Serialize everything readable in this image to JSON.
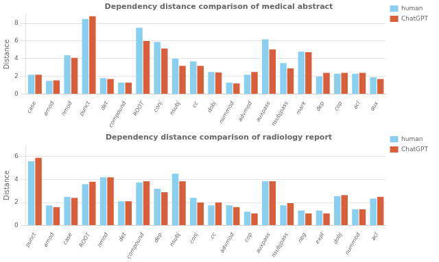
{
  "chart_data": [
    {
      "type": "bar",
      "title": "Dependency distance comparison of medical abstract",
      "ylabel": "Distance",
      "categories": [
        "case",
        "amod",
        "nmod",
        "punct",
        "det",
        "compound",
        "ROOT",
        "conj",
        "nsubj",
        "cc",
        "dobj",
        "nummod",
        "advmod",
        "auxpass",
        "nsubjpass",
        "mark",
        "dep",
        "cop",
        "acl",
        "aux"
      ],
      "series": [
        {
          "name": "human",
          "color": "#89CFF0",
          "values": [
            2.2,
            1.5,
            4.4,
            8.5,
            1.8,
            1.3,
            7.5,
            5.9,
            4.0,
            3.7,
            2.5,
            1.3,
            2.2,
            6.2,
            3.5,
            4.8,
            2.0,
            2.3,
            2.3,
            1.9
          ]
        },
        {
          "name": "ChatGPT",
          "color": "#D95F3B",
          "values": [
            2.2,
            1.55,
            4.1,
            8.8,
            1.7,
            1.3,
            6.0,
            5.15,
            3.2,
            3.2,
            2.45,
            1.2,
            2.5,
            5.05,
            2.9,
            4.75,
            2.4,
            2.4,
            2.4,
            1.7
          ]
        }
      ],
      "ylim": [
        0,
        9
      ],
      "yticks": [
        0,
        2,
        4,
        6,
        8
      ],
      "grid": true,
      "legend": "upper right"
    },
    {
      "type": "bar",
      "title": "Dependency distance comparison of radiology report",
      "ylabel": "Distance",
      "categories": [
        "punct",
        "amod",
        "case",
        "ROOT",
        "nmod",
        "det",
        "compound",
        "dep",
        "nsubj",
        "conj",
        "cc",
        "advmod",
        "cop",
        "auxpass",
        "nsubjpass",
        "neg",
        "expl",
        "dobj",
        "nummod",
        "acl"
      ],
      "series": [
        {
          "name": "human",
          "color": "#89CFF0",
          "values": [
            5.6,
            1.75,
            2.5,
            3.6,
            4.2,
            2.1,
            3.75,
            3.2,
            4.5,
            2.4,
            1.75,
            1.75,
            1.2,
            3.85,
            1.75,
            1.3,
            1.3,
            2.55,
            1.4,
            2.35
          ]
        },
        {
          "name": "ChatGPT",
          "color": "#D95F3B",
          "values": [
            5.9,
            1.6,
            2.4,
            3.8,
            4.2,
            2.1,
            3.85,
            2.9,
            3.85,
            2.0,
            2.0,
            1.6,
            1.05,
            3.85,
            1.95,
            1.05,
            1.05,
            2.65,
            1.4,
            2.5
          ]
        }
      ],
      "ylim": [
        0,
        7
      ],
      "yticks": [
        0,
        2,
        4,
        6
      ],
      "grid": true,
      "legend": "upper right"
    }
  ]
}
